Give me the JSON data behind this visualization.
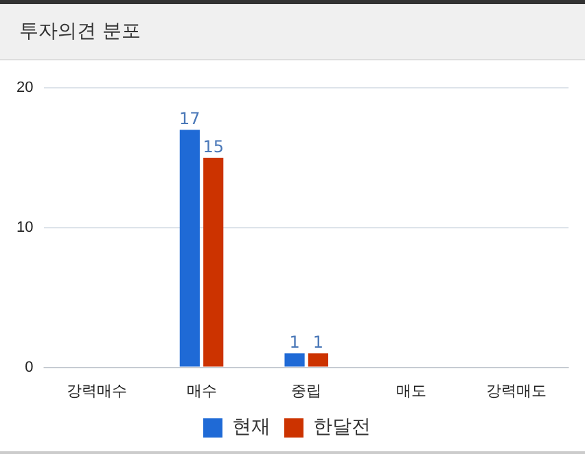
{
  "chart_data": {
    "type": "bar",
    "title": "투자의견 분포",
    "categories": [
      "강력매수",
      "매수",
      "중립",
      "매도",
      "강력매도"
    ],
    "series": [
      {
        "name": "현재",
        "color": "#1f6ad6",
        "values": [
          0,
          17,
          1,
          0,
          0
        ],
        "value_labels": [
          null,
          "17",
          "1",
          null,
          null
        ]
      },
      {
        "name": "한달전",
        "color": "#cc3300",
        "values": [
          0,
          15,
          1,
          0,
          0
        ],
        "value_labels": [
          null,
          "15",
          "1",
          null,
          null
        ]
      }
    ],
    "ylim": [
      0,
      20
    ],
    "yticks": [
      0,
      10,
      20
    ],
    "grid": "y",
    "legend": "bottom"
  }
}
